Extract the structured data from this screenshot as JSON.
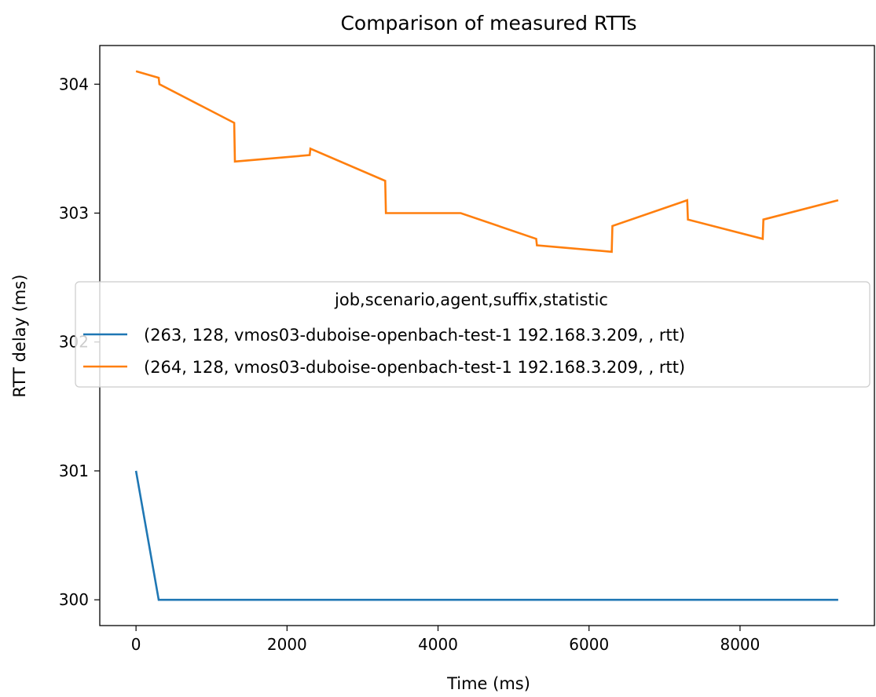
{
  "chart_data": {
    "type": "line",
    "title": "Comparison of measured RTTs",
    "xlabel": "Time (ms)",
    "ylabel": "RTT delay (ms)",
    "xlim": [
      -480,
      9780
    ],
    "ylim": [
      299.8,
      304.3
    ],
    "xticks": [
      0,
      2000,
      4000,
      6000,
      8000
    ],
    "xtick_labels": [
      "0",
      "2000",
      "4000",
      "6000",
      "8000"
    ],
    "yticks": [
      300,
      301,
      302,
      303,
      304
    ],
    "ytick_labels": [
      "300",
      "301",
      "302",
      "303",
      "304"
    ],
    "grid": false,
    "legend": {
      "title": "job,scenario,agent,suffix,statistic",
      "placement": "center-right"
    },
    "series": [
      {
        "name": "(263, 128, vmos03-duboise-openbach-test-1 192.168.3.209, , rtt)",
        "color": "#1f77b4",
        "x": [
          0,
          300,
          9300
        ],
        "y": [
          301.0,
          300.0,
          300.0
        ]
      },
      {
        "name": "(264, 128, vmos03-duboise-openbach-test-1 192.168.3.209, , rtt)",
        "color": "#ff7f0e",
        "x": [
          0,
          300,
          310,
          1300,
          1310,
          2300,
          2310,
          3300,
          3310,
          4300,
          5300,
          5310,
          6300,
          6310,
          7300,
          7310,
          8300,
          8310,
          9300
        ],
        "y": [
          304.1,
          304.05,
          304.0,
          303.7,
          303.4,
          303.45,
          303.5,
          303.25,
          303.0,
          303.0,
          302.8,
          302.75,
          302.7,
          302.9,
          303.1,
          302.95,
          302.8,
          302.95,
          303.1
        ]
      }
    ]
  }
}
